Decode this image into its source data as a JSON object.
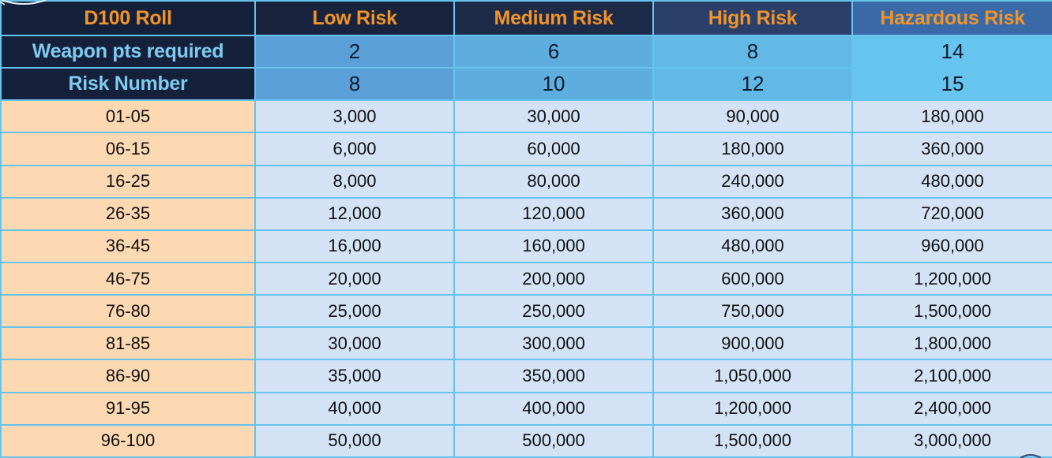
{
  "table": {
    "header": {
      "roll_label": "D100 Roll",
      "columns": [
        "Low Risk",
        "Medium Risk",
        "High Risk",
        "Hazardous Risk"
      ]
    },
    "weapon_pts": {
      "label": "Weapon pts required",
      "values": [
        "2",
        "6",
        "8",
        "14"
      ]
    },
    "risk_number": {
      "label": "Risk Number",
      "values": [
        "8",
        "10",
        "12",
        "15"
      ]
    },
    "rows": [
      {
        "roll": "01-05",
        "values": [
          "3,000",
          "30,000",
          "90,000",
          "180,000"
        ]
      },
      {
        "roll": "06-15",
        "values": [
          "6,000",
          "60,000",
          "180,000",
          "360,000"
        ]
      },
      {
        "roll": "16-25",
        "values": [
          "8,000",
          "80,000",
          "240,000",
          "480,000"
        ]
      },
      {
        "roll": "26-35",
        "values": [
          "12,000",
          "120,000",
          "360,000",
          "720,000"
        ]
      },
      {
        "roll": "36-45",
        "values": [
          "16,000",
          "160,000",
          "480,000",
          "960,000"
        ]
      },
      {
        "roll": "46-75",
        "values": [
          "20,000",
          "200,000",
          "600,000",
          "1,200,000"
        ]
      },
      {
        "roll": "76-80",
        "values": [
          "25,000",
          "250,000",
          "750,000",
          "1,500,000"
        ]
      },
      {
        "roll": "81-85",
        "values": [
          "30,000",
          "300,000",
          "900,000",
          "1,800,000"
        ]
      },
      {
        "roll": "86-90",
        "values": [
          "35,000",
          "350,000",
          "1,050,000",
          "2,100,000"
        ]
      },
      {
        "roll": "91-95",
        "values": [
          "40,000",
          "400,000",
          "1,200,000",
          "2,400,000"
        ]
      },
      {
        "roll": "96-100",
        "values": [
          "50,000",
          "500,000",
          "1,500,000",
          "3,000,000"
        ]
      }
    ]
  },
  "colors": {
    "header_text": "#f0942a",
    "label_text": "#7fcbf0",
    "roll_cell_bg": "#fdd9b3",
    "value_cell_bg": "#d3e2f5",
    "grid_line": "#66c3ec",
    "dark_header_bg": "#15213a"
  },
  "icons": {
    "top_left": "decorative-arc-icon",
    "bottom_right": "decorative-arc-icon"
  }
}
